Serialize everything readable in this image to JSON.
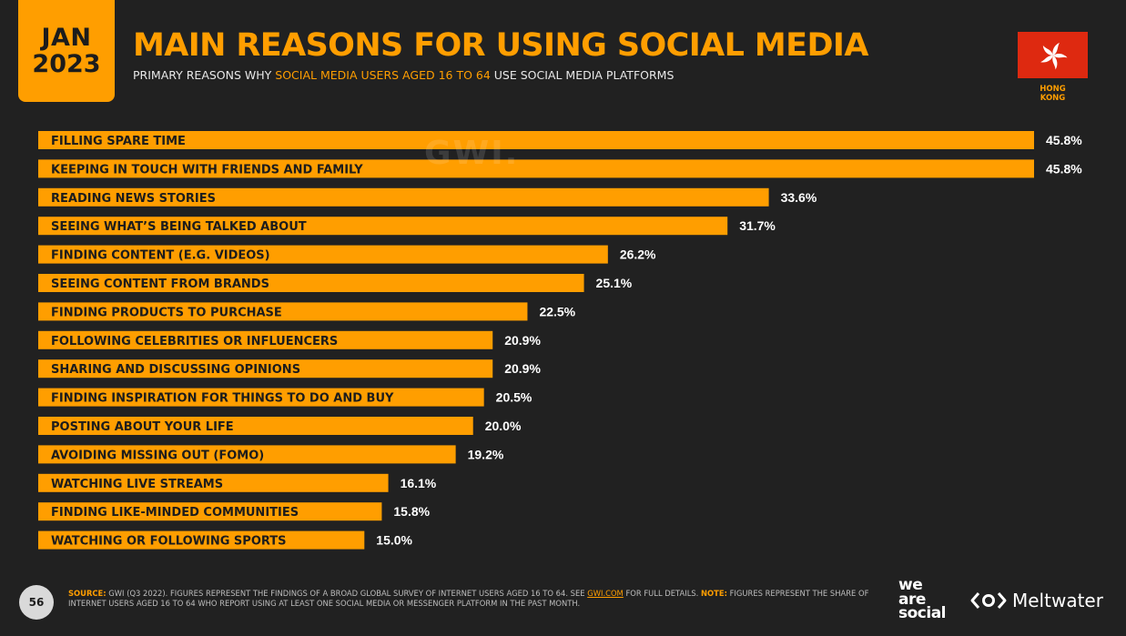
{
  "header": {
    "date_month": "JAN",
    "date_year": "2023",
    "title": "MAIN REASONS FOR USING SOCIAL MEDIA",
    "subtitle_pre": "PRIMARY REASONS WHY ",
    "subtitle_highlight": "SOCIAL MEDIA USERS AGED 16 TO 64",
    "subtitle_post": " USE SOCIAL MEDIA PLATFORMS",
    "country_line1": "HONG",
    "country_line2": "KONG",
    "watermark": "GWI."
  },
  "chart_data": {
    "type": "bar",
    "orientation": "horizontal",
    "categories": [
      "FILLING SPARE TIME",
      "KEEPING IN TOUCH WITH FRIENDS AND FAMILY",
      "READING NEWS STORIES",
      "SEEING WHAT’S BEING TALKED ABOUT",
      "FINDING CONTENT (E.G. VIDEOS)",
      "SEEING CONTENT FROM BRANDS",
      "FINDING PRODUCTS TO PURCHASE",
      "FOLLOWING CELEBRITIES OR INFLUENCERS",
      "SHARING AND DISCUSSING OPINIONS",
      "FINDING INSPIRATION FOR THINGS TO DO AND BUY",
      "POSTING ABOUT YOUR LIFE",
      "AVOIDING MISSING OUT (FOMO)",
      "WATCHING LIVE STREAMS",
      "FINDING LIKE-MINDED COMMUNITIES",
      "WATCHING OR FOLLOWING SPORTS"
    ],
    "values": [
      45.8,
      45.8,
      33.6,
      31.7,
      26.2,
      25.1,
      22.5,
      20.9,
      20.9,
      20.5,
      20.0,
      19.2,
      16.1,
      15.8,
      15.0
    ],
    "value_labels": [
      "45.8%",
      "45.8%",
      "33.6%",
      "31.7%",
      "26.2%",
      "25.1%",
      "22.5%",
      "20.9%",
      "20.9%",
      "20.5%",
      "20.0%",
      "19.2%",
      "16.1%",
      "15.8%",
      "15.0%"
    ],
    "xlim": [
      0,
      45.8
    ],
    "bar_color": "#FF9E00",
    "grid": false
  },
  "footer": {
    "page_number": "56",
    "source_label": "SOURCE:",
    "source_text_1": " GWI (Q3 2022). FIGURES REPRESENT THE FINDINGS OF A BROAD GLOBAL SURVEY OF INTERNET USERS AGED 16 TO 64. SEE ",
    "source_link": "GWI.COM",
    "source_text_2": " FOR FULL DETAILS. ",
    "note_label": "NOTE:",
    "note_text": " FIGURES REPRESENT THE SHARE OF INTERNET USERS AGED 16 TO 64 WHO REPORT USING AT LEAST ONE SOCIAL MEDIA OR MESSENGER PLATFORM IN THE PAST MONTH.",
    "brand_we": "we",
    "brand_are": "are",
    "brand_social": "social",
    "brand_meltwater": "Meltwater"
  },
  "colors": {
    "background": "#212121",
    "accent": "#FF9E00",
    "flag_red": "#DE2910"
  }
}
